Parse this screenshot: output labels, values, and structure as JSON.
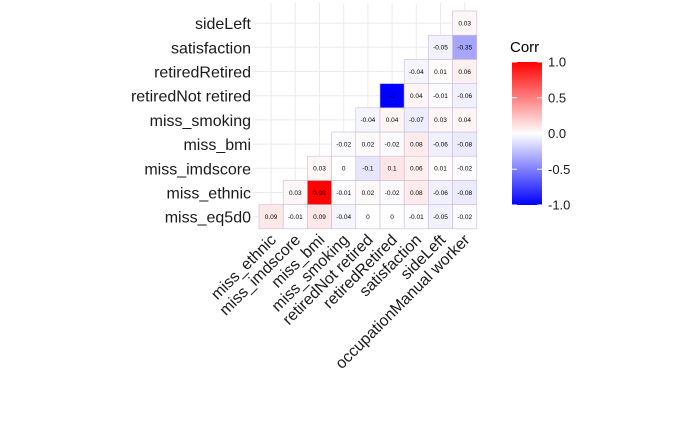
{
  "chart_data": {
    "type": "heatmap",
    "title": "",
    "xlabel": "",
    "ylabel": "",
    "row_order": [
      "sideLeft",
      "satisfaction",
      "retiredRetired",
      "retiredNot retired",
      "miss_smoking",
      "miss_bmi",
      "miss_imdscore",
      "miss_ethnic",
      "miss_eq5d0"
    ],
    "col_order": [
      "miss_ethnic",
      "miss_imdscore",
      "miss_bmi",
      "miss_smoking",
      "retiredNot retired",
      "retiredRetired",
      "satisfaction",
      "sideLeft",
      "occupationManual worker"
    ],
    "cells": [
      {
        "row": "miss_eq5d0",
        "col": "miss_ethnic",
        "value": 0.09,
        "label": "0.09"
      },
      {
        "row": "miss_eq5d0",
        "col": "miss_imdscore",
        "value": -0.01,
        "label": "-0.01"
      },
      {
        "row": "miss_eq5d0",
        "col": "miss_bmi",
        "value": 0.09,
        "label": "0.09"
      },
      {
        "row": "miss_eq5d0",
        "col": "miss_smoking",
        "value": -0.04,
        "label": "-0.04"
      },
      {
        "row": "miss_eq5d0",
        "col": "retiredNot retired",
        "value": 0,
        "label": "0"
      },
      {
        "row": "miss_eq5d0",
        "col": "retiredRetired",
        "value": 0,
        "label": "0"
      },
      {
        "row": "miss_eq5d0",
        "col": "satisfaction",
        "value": -0.01,
        "label": "-0.01"
      },
      {
        "row": "miss_eq5d0",
        "col": "sideLeft",
        "value": -0.05,
        "label": "-0.05"
      },
      {
        "row": "miss_eq5d0",
        "col": "occupationManual worker",
        "value": -0.02,
        "label": "-0.02"
      },
      {
        "row": "miss_ethnic",
        "col": "miss_imdscore",
        "value": 0.03,
        "label": "0.03"
      },
      {
        "row": "miss_ethnic",
        "col": "miss_bmi",
        "value": 0.99,
        "label": "0.99"
      },
      {
        "row": "miss_ethnic",
        "col": "miss_smoking",
        "value": -0.01,
        "label": "-0.01"
      },
      {
        "row": "miss_ethnic",
        "col": "retiredNot retired",
        "value": 0.02,
        "label": "0.02"
      },
      {
        "row": "miss_ethnic",
        "col": "retiredRetired",
        "value": -0.02,
        "label": "-0.02"
      },
      {
        "row": "miss_ethnic",
        "col": "satisfaction",
        "value": 0.08,
        "label": "0.08"
      },
      {
        "row": "miss_ethnic",
        "col": "sideLeft",
        "value": -0.06,
        "label": "-0.06"
      },
      {
        "row": "miss_ethnic",
        "col": "occupationManual worker",
        "value": -0.08,
        "label": "-0.08"
      },
      {
        "row": "miss_imdscore",
        "col": "miss_bmi",
        "value": 0.03,
        "label": "0.03"
      },
      {
        "row": "miss_imdscore",
        "col": "miss_smoking",
        "value": 0,
        "label": "0"
      },
      {
        "row": "miss_imdscore",
        "col": "retiredNot retired",
        "value": -0.1,
        "label": "-0.1"
      },
      {
        "row": "miss_imdscore",
        "col": "retiredRetired",
        "value": 0.1,
        "label": "0.1"
      },
      {
        "row": "miss_imdscore",
        "col": "satisfaction",
        "value": 0.06,
        "label": "0.06"
      },
      {
        "row": "miss_imdscore",
        "col": "sideLeft",
        "value": 0.01,
        "label": "0.01"
      },
      {
        "row": "miss_imdscore",
        "col": "occupationManual worker",
        "value": -0.02,
        "label": "-0.02"
      },
      {
        "row": "miss_bmi",
        "col": "miss_smoking",
        "value": -0.02,
        "label": "-0.02"
      },
      {
        "row": "miss_bmi",
        "col": "retiredNot retired",
        "value": 0.02,
        "label": "0.02"
      },
      {
        "row": "miss_bmi",
        "col": "retiredRetired",
        "value": -0.02,
        "label": "-0.02"
      },
      {
        "row": "miss_bmi",
        "col": "satisfaction",
        "value": 0.08,
        "label": "0.08"
      },
      {
        "row": "miss_bmi",
        "col": "sideLeft",
        "value": -0.06,
        "label": "-0.06"
      },
      {
        "row": "miss_bmi",
        "col": "occupationManual worker",
        "value": -0.08,
        "label": "-0.08"
      },
      {
        "row": "miss_smoking",
        "col": "retiredNot retired",
        "value": -0.04,
        "label": "-0.04"
      },
      {
        "row": "miss_smoking",
        "col": "retiredRetired",
        "value": 0.04,
        "label": "0.04"
      },
      {
        "row": "miss_smoking",
        "col": "satisfaction",
        "value": -0.07,
        "label": "-0.07"
      },
      {
        "row": "miss_smoking",
        "col": "sideLeft",
        "value": 0.03,
        "label": "0.03"
      },
      {
        "row": "miss_smoking",
        "col": "occupationManual worker",
        "value": 0.04,
        "label": "0.04"
      },
      {
        "row": "retiredNot retired",
        "col": "retiredRetired",
        "value": -1,
        "label": "-1"
      },
      {
        "row": "retiredNot retired",
        "col": "satisfaction",
        "value": 0.04,
        "label": "0.04"
      },
      {
        "row": "retiredNot retired",
        "col": "sideLeft",
        "value": -0.01,
        "label": "-0.01"
      },
      {
        "row": "retiredNot retired",
        "col": "occupationManual worker",
        "value": -0.06,
        "label": "-0.06"
      },
      {
        "row": "retiredRetired",
        "col": "satisfaction",
        "value": -0.04,
        "label": "-0.04"
      },
      {
        "row": "retiredRetired",
        "col": "sideLeft",
        "value": 0.01,
        "label": "0.01"
      },
      {
        "row": "retiredRetired",
        "col": "occupationManual worker",
        "value": 0.06,
        "label": "0.06"
      },
      {
        "row": "satisfaction",
        "col": "sideLeft",
        "value": -0.05,
        "label": "-0.05"
      },
      {
        "row": "satisfaction",
        "col": "occupationManual worker",
        "value": -0.35,
        "label": "-0.35"
      },
      {
        "row": "sideLeft",
        "col": "occupationManual worker",
        "value": 0.03,
        "label": "0.03"
      }
    ],
    "legend": {
      "title": "Corr",
      "range": [
        -1,
        1
      ],
      "ticks": [
        1.0,
        0.5,
        0.0,
        -0.5,
        -1.0
      ],
      "tick_labels": [
        "1.0",
        "0.5",
        "0.0",
        "-0.5",
        "-1.0"
      ],
      "placement": "right"
    },
    "colors": {
      "low": "#0000ff",
      "mid": "#ffffff",
      "high": "#ff0000",
      "grid": "#ebebeb",
      "cell_border": "#c9bcd6"
    },
    "grid": true
  }
}
